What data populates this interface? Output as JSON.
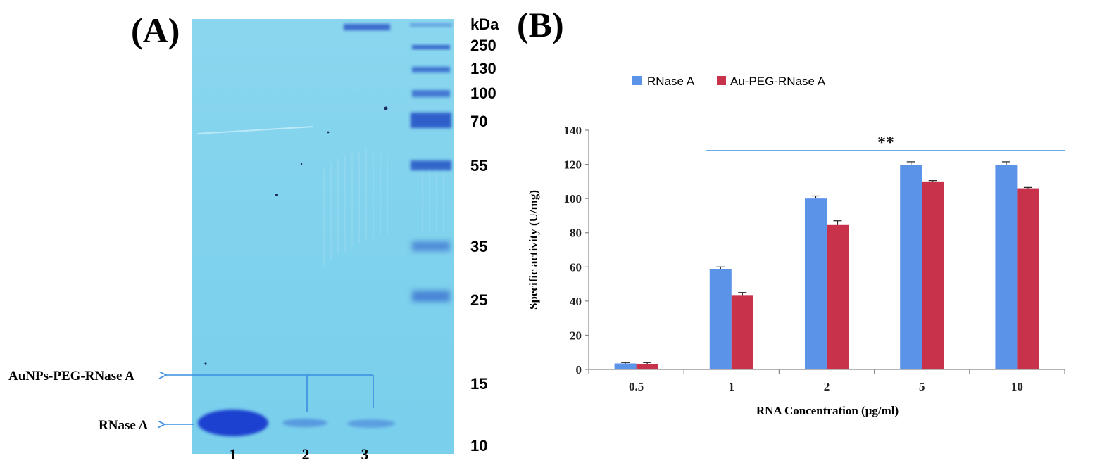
{
  "panel_a": {
    "label": "(A)",
    "unit": "kDa",
    "markers": [
      "250",
      "130",
      "100",
      "70",
      "55",
      "35",
      "25",
      "15",
      "10"
    ],
    "lanes": [
      "1",
      "2",
      "3"
    ],
    "annotations": {
      "conjugate": "AuNPs-PEG-RNase A",
      "free": "RNase A"
    },
    "colors": {
      "gel": "#7fd3ee",
      "band": "#1a3fcf",
      "arrow": "#3a8ee0"
    }
  },
  "panel_b": {
    "label": "(B)",
    "significance": "**",
    "colors": {
      "series1": "#5b93e9",
      "series2": "#c8324a",
      "sig_line": "#3a8ee0",
      "axis": "#888888"
    }
  },
  "chart_data": {
    "type": "bar",
    "categories": [
      "0.5",
      "1",
      "2",
      "5",
      "10"
    ],
    "series": [
      {
        "name": "RNase A",
        "values": [
          3.5,
          58.5,
          100,
          119.5,
          119.5
        ],
        "errors": [
          0.5,
          1.5,
          1.5,
          2,
          2
        ]
      },
      {
        "name": "Au-PEG-RNase A",
        "values": [
          3,
          43.5,
          84.5,
          110,
          106
        ],
        "errors": [
          1,
          1.5,
          2.5,
          0.5,
          0.5
        ]
      }
    ],
    "title": "",
    "xlabel": "RNA Concentration (μg/ml)",
    "ylabel": "Specific activity (U/mg)",
    "ylim": [
      0,
      140
    ],
    "yticks": [
      "0",
      "20",
      "40",
      "60",
      "80",
      "100",
      "120",
      "140"
    ],
    "legend": "top-left",
    "grid": false
  }
}
